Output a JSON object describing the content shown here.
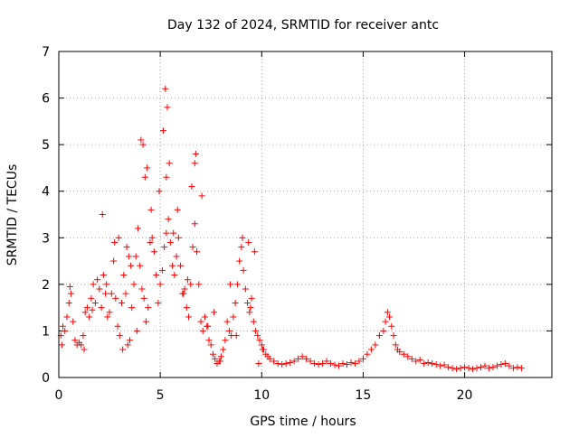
{
  "chart_data": {
    "type": "scatter",
    "title": "Day 132 of 2024, SRMTID for receiver antc",
    "xlabel": "GPS time / hours",
    "ylabel": "SRMTID / TECUs",
    "xlim": [
      0,
      24.3
    ],
    "ylim": [
      0,
      7
    ],
    "xticks": [
      0,
      5,
      10,
      15,
      20
    ],
    "yticks": [
      0,
      1,
      2,
      3,
      4,
      5,
      6,
      7
    ],
    "grid": true,
    "marker": "+",
    "series": [
      {
        "name": "SRMTID",
        "color": "#ff0000",
        "x": [
          0.1,
          0.2,
          0.3,
          0.4,
          0.5,
          0.6,
          0.7,
          0.8,
          0.9,
          1.0,
          1.1,
          1.2,
          1.3,
          1.4,
          1.5,
          1.6,
          1.7,
          1.8,
          1.9,
          2.0,
          2.1,
          2.2,
          2.3,
          2.4,
          2.5,
          2.6,
          2.7,
          2.8,
          2.9,
          3.0,
          3.1,
          3.2,
          3.3,
          3.4,
          3.5,
          3.6,
          3.7,
          3.8,
          3.9,
          4.0,
          4.1,
          4.2,
          4.3,
          4.4,
          4.5,
          4.6,
          4.7,
          4.8,
          4.9,
          5.0,
          5.1,
          5.2,
          5.3,
          5.4,
          5.5,
          5.6,
          5.7,
          5.8,
          5.9,
          6.0,
          6.1,
          6.2,
          6.3,
          6.4,
          6.5,
          6.6,
          6.7,
          6.8,
          6.9,
          7.0,
          7.1,
          7.2,
          7.3,
          7.4,
          7.5,
          7.6,
          7.7,
          7.8,
          7.9,
          8.0,
          8.1,
          8.2,
          8.3,
          8.4,
          8.5,
          8.6,
          8.7,
          8.8,
          8.9,
          9.0,
          9.1,
          9.2,
          9.3,
          9.4,
          9.5,
          9.6,
          9.7,
          9.8,
          9.9,
          10.0,
          10.1,
          10.2,
          10.3,
          10.4,
          10.6,
          10.8,
          11.0,
          11.2,
          11.4,
          11.6,
          11.8,
          12.0,
          12.2,
          12.4,
          12.6,
          12.8,
          13.0,
          13.2,
          13.4,
          13.6,
          13.8,
          14.0,
          14.2,
          14.4,
          14.6,
          14.8,
          15.0,
          15.2,
          15.4,
          15.6,
          15.8,
          16.0,
          16.1,
          16.2,
          16.3,
          16.4,
          16.5,
          16.6,
          16.7,
          16.8,
          17.0,
          17.2,
          17.4,
          17.6,
          17.8,
          18.0,
          18.2,
          18.4,
          18.6,
          18.8,
          19.0,
          19.2,
          19.4,
          19.6,
          19.8,
          20.0,
          20.2,
          20.4,
          20.6,
          20.8,
          21.0,
          21.2,
          21.4,
          21.6,
          21.8,
          22.0,
          22.2,
          22.4,
          22.6,
          22.8,
          0.15,
          0.55,
          1.25,
          1.65,
          2.15,
          2.35,
          2.75,
          3.15,
          3.45,
          3.85,
          4.05,
          4.25,
          4.55,
          4.95,
          5.25,
          5.35,
          5.45,
          5.65,
          5.85,
          6.15,
          6.35,
          6.55,
          6.75,
          7.05,
          7.35,
          7.65,
          7.95,
          8.45,
          8.75,
          9.05,
          9.35,
          9.45,
          9.65,
          9.85,
          10.05,
          4.15,
          4.35,
          5.15,
          5.3,
          6.7,
          3.55,
          3.35,
          2.95
        ],
        "y": [
          0.9,
          1.1,
          1.0,
          1.3,
          1.6,
          1.8,
          1.2,
          0.8,
          0.7,
          0.75,
          0.7,
          0.9,
          1.4,
          1.5,
          1.3,
          1.7,
          2.0,
          1.6,
          2.1,
          1.9,
          1.5,
          2.2,
          1.8,
          1.3,
          1.4,
          1.8,
          2.5,
          1.7,
          1.1,
          0.9,
          1.6,
          2.2,
          1.8,
          0.7,
          0.8,
          1.5,
          2.0,
          2.6,
          3.2,
          2.4,
          1.9,
          1.7,
          1.2,
          1.5,
          2.9,
          3.0,
          2.7,
          2.2,
          1.6,
          2.0,
          2.3,
          2.8,
          3.1,
          3.4,
          2.9,
          2.4,
          2.2,
          2.6,
          3.0,
          2.4,
          1.8,
          1.9,
          1.5,
          1.3,
          2.0,
          2.8,
          3.3,
          2.7,
          2.0,
          1.2,
          1.0,
          1.3,
          1.1,
          0.8,
          0.7,
          0.5,
          0.4,
          0.3,
          0.35,
          0.45,
          0.6,
          0.8,
          1.2,
          1.0,
          0.9,
          1.3,
          1.6,
          2.0,
          2.5,
          2.8,
          2.3,
          1.9,
          1.6,
          1.4,
          1.7,
          1.2,
          1.0,
          0.9,
          0.8,
          0.7,
          0.6,
          0.5,
          0.45,
          0.4,
          0.35,
          0.3,
          0.28,
          0.3,
          0.32,
          0.35,
          0.4,
          0.45,
          0.4,
          0.35,
          0.3,
          0.28,
          0.3,
          0.35,
          0.3,
          0.27,
          0.25,
          0.3,
          0.28,
          0.32,
          0.3,
          0.35,
          0.4,
          0.5,
          0.6,
          0.7,
          0.9,
          1.0,
          1.2,
          1.4,
          1.3,
          1.1,
          0.9,
          0.7,
          0.6,
          0.55,
          0.5,
          0.45,
          0.4,
          0.35,
          0.38,
          0.3,
          0.32,
          0.3,
          0.28,
          0.25,
          0.27,
          0.22,
          0.2,
          0.18,
          0.2,
          0.22,
          0.2,
          0.18,
          0.2,
          0.22,
          0.25,
          0.2,
          0.22,
          0.25,
          0.28,
          0.3,
          0.25,
          0.2,
          0.22,
          0.2,
          0.7,
          1.95,
          0.6,
          1.45,
          3.5,
          2.0,
          2.9,
          0.6,
          2.6,
          1.0,
          5.1,
          4.3,
          3.6,
          4.0,
          6.2,
          5.8,
          4.6,
          3.1,
          3.6,
          1.8,
          2.1,
          4.1,
          4.8,
          3.9,
          1.1,
          1.4,
          0.35,
          2.0,
          0.9,
          3.0,
          2.9,
          1.5,
          2.7,
          0.3,
          0.6,
          5.0,
          4.5,
          5.3,
          4.3,
          4.6,
          2.4,
          2.8,
          3.0
        ]
      }
    ]
  }
}
